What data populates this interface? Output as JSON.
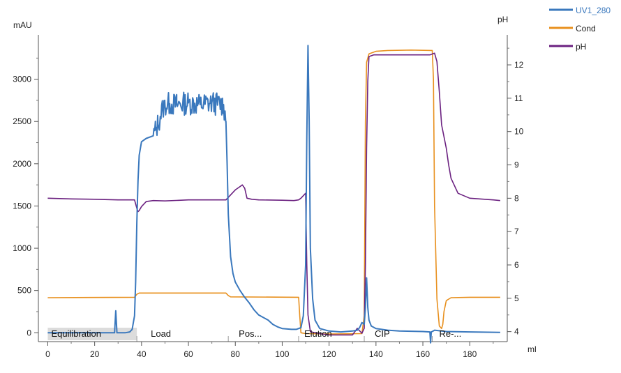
{
  "chart_data": {
    "type": "line",
    "xlabel": "ml",
    "ylabel_left": "mAU",
    "ylabel_right": "pH",
    "xlim": [
      -4,
      196
    ],
    "ylim_left": [
      -105,
      3525
    ],
    "ylim_right": [
      3.7,
      12.9
    ],
    "xticks": [
      0,
      20,
      40,
      60,
      80,
      100,
      120,
      140,
      160,
      180
    ],
    "yticks_left": [
      0,
      500,
      1000,
      1500,
      2000,
      2500,
      3000
    ],
    "yticks_right": [
      4,
      5,
      6,
      7,
      8,
      9,
      10,
      11,
      12
    ],
    "grid": false,
    "legend_position": "top-right",
    "legend": [
      {
        "name": "UV1_280",
        "color": "#3a78bd"
      },
      {
        "name": "Cond",
        "color": "#e8901e"
      },
      {
        "name": "pH",
        "color": "#6b2180"
      }
    ],
    "phases": [
      {
        "label": "Equilibration",
        "x": 0,
        "fill": "#dcdcdc"
      },
      {
        "label": "Load",
        "x": 38
      },
      {
        "label": "Pos...",
        "x": 77
      },
      {
        "label": "Elution",
        "x": 107
      },
      {
        "label": "CIP",
        "x": 135
      },
      {
        "label": "Re-...",
        "x": 164
      }
    ],
    "series": [
      {
        "name": "UV1_280",
        "axis": "left",
        "color": "#3a78bd",
        "x": [
          0,
          28.5,
          29,
          29.5,
          30,
          33,
          35,
          36,
          37,
          37.5,
          38,
          38.5,
          39,
          40,
          42,
          45,
          46,
          47,
          48,
          49,
          50,
          52,
          55,
          60,
          65,
          70,
          75,
          76,
          76.5,
          77,
          78,
          79,
          80,
          82,
          84,
          86,
          88,
          90,
          92,
          94,
          96,
          98,
          100,
          104,
          106,
          108,
          109,
          110,
          110.5,
          111,
          111.5,
          112,
          113,
          114,
          116,
          120,
          125,
          130,
          132,
          133,
          134,
          135,
          135.5,
          136,
          136.5,
          137,
          138,
          140,
          145,
          150,
          160,
          163,
          163.3,
          163.6,
          164,
          165,
          170,
          180,
          193
        ],
        "y": [
          0,
          0,
          260,
          0,
          0,
          0,
          10,
          40,
          200,
          600,
          1300,
          1800,
          2100,
          2260,
          2300,
          2330,
          2400,
          2470,
          2560,
          2650,
          2700,
          2710,
          2700,
          2720,
          2700,
          2720,
          2700,
          2500,
          2000,
          1400,
          900,
          700,
          600,
          500,
          420,
          350,
          270,
          210,
          180,
          150,
          100,
          70,
          50,
          40,
          40,
          60,
          200,
          800,
          2300,
          3400,
          2500,
          1000,
          400,
          150,
          50,
          20,
          10,
          20,
          30,
          60,
          120,
          100,
          300,
          650,
          300,
          150,
          80,
          50,
          30,
          20,
          15,
          10,
          -120,
          10,
          15,
          30,
          15,
          10,
          5
        ]
      },
      {
        "name": "Cond",
        "axis": "left",
        "color": "#e8901e",
        "x": [
          0,
          37,
          38,
          39,
          76,
          77,
          78,
          107,
          107.5,
          108,
          110,
          120,
          134,
          135,
          135.5,
          136,
          137,
          140,
          145,
          155,
          164,
          164.5,
          165,
          166,
          167,
          168,
          168.5,
          169,
          170,
          172,
          180,
          193
        ],
        "y": [
          415,
          420,
          455,
          470,
          470,
          440,
          425,
          420,
          200,
          0,
          -10,
          -15,
          -10,
          200,
          2500,
          3200,
          3300,
          3330,
          3340,
          3345,
          3340,
          3000,
          1500,
          400,
          80,
          50,
          100,
          250,
          380,
          415,
          420,
          420
        ],
        "noise_x": [
          45,
          75
        ],
        "noise_amp": 140
      },
      {
        "name": "pH",
        "axis": "right",
        "color": "#6b2180",
        "x": [
          0,
          10,
          20,
          30,
          37,
          38,
          38.5,
          39,
          40,
          42,
          45,
          50,
          60,
          70,
          76,
          78,
          80,
          82,
          83,
          84,
          85,
          87,
          90,
          100,
          105,
          107,
          108,
          110,
          110.5,
          111,
          112,
          115,
          120,
          130,
          131,
          132,
          134,
          135,
          135.5,
          136,
          136.5,
          137,
          139,
          145,
          155,
          163,
          165,
          166,
          167,
          168,
          170,
          171,
          172,
          175,
          180,
          190,
          193
        ],
        "y": [
          8.0,
          7.98,
          7.97,
          7.95,
          7.95,
          7.7,
          7.6,
          7.63,
          7.75,
          7.9,
          7.93,
          7.92,
          7.95,
          7.95,
          7.95,
          8.1,
          8.25,
          8.35,
          8.4,
          8.3,
          8.0,
          7.97,
          7.95,
          7.94,
          7.93,
          7.95,
          8.0,
          8.15,
          6.0,
          4.5,
          4.0,
          3.95,
          3.9,
          3.9,
          4.0,
          4.1,
          3.95,
          4.1,
          6.0,
          9.5,
          11.5,
          12.25,
          12.3,
          12.3,
          12.3,
          12.3,
          12.35,
          12.1,
          11.2,
          10.2,
          9.5,
          9.0,
          8.6,
          8.15,
          8.0,
          7.95,
          7.93
        ]
      }
    ]
  }
}
